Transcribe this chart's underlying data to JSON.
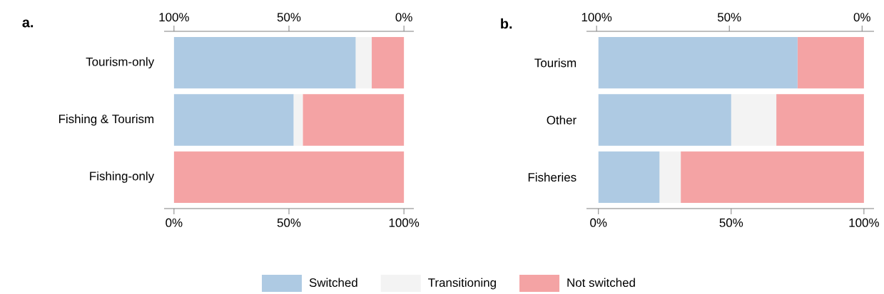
{
  "chart_data": [
    {
      "type": "bar",
      "title": "a.",
      "orientation": "horizontal",
      "stacked": true,
      "legend": "bottom",
      "categories": [
        "Tourism-only",
        "Fishing & Tourism",
        "Fishing-only"
      ],
      "series": [
        {
          "name": "Switched",
          "color": "#aecae3",
          "values": [
            79,
            52,
            0
          ]
        },
        {
          "name": "Transitioning",
          "color": "#f3f3f3",
          "values": [
            7,
            4,
            0
          ]
        },
        {
          "name": "Not switched",
          "color": "#f4a3a4",
          "values": [
            14,
            44,
            100
          ]
        }
      ],
      "xlim": [
        -4.3,
        104.3
      ],
      "xticks": [
        {
          "value": 0,
          "label": "0%"
        },
        {
          "value": 50,
          "label": "50%"
        },
        {
          "value": 100,
          "label": "100%"
        }
      ],
      "x2lim": [
        104.3,
        -4.3
      ],
      "x2ticks": [
        {
          "value": 100,
          "label": "100%"
        },
        {
          "value": 50,
          "label": "50%"
        },
        {
          "value": 0,
          "label": "0%"
        }
      ]
    },
    {
      "type": "bar",
      "title": "b.",
      "orientation": "horizontal",
      "stacked": true,
      "categories": [
        "Tourism",
        "Other",
        "Fisheries"
      ],
      "series": [
        {
          "color": "#aecae3",
          "values": [
            75,
            50,
            23
          ]
        },
        {
          "color": "#f3f3f3",
          "values": [
            0,
            17,
            8
          ]
        },
        {
          "color": "#f4a3a4",
          "values": [
            25,
            33,
            69
          ]
        }
      ],
      "xlim": [
        -4.5,
        103.8
      ],
      "xticks": [
        {
          "value": 0,
          "label": "0%"
        },
        {
          "value": 50,
          "label": "50%"
        },
        {
          "value": 100,
          "label": "100%"
        }
      ],
      "x2lim": [
        103.8,
        -4.5
      ],
      "x2ticks": [
        {
          "value": 100,
          "label": "100%"
        },
        {
          "value": 50,
          "label": "50%"
        },
        {
          "value": 0,
          "label": "0%"
        }
      ]
    }
  ]
}
